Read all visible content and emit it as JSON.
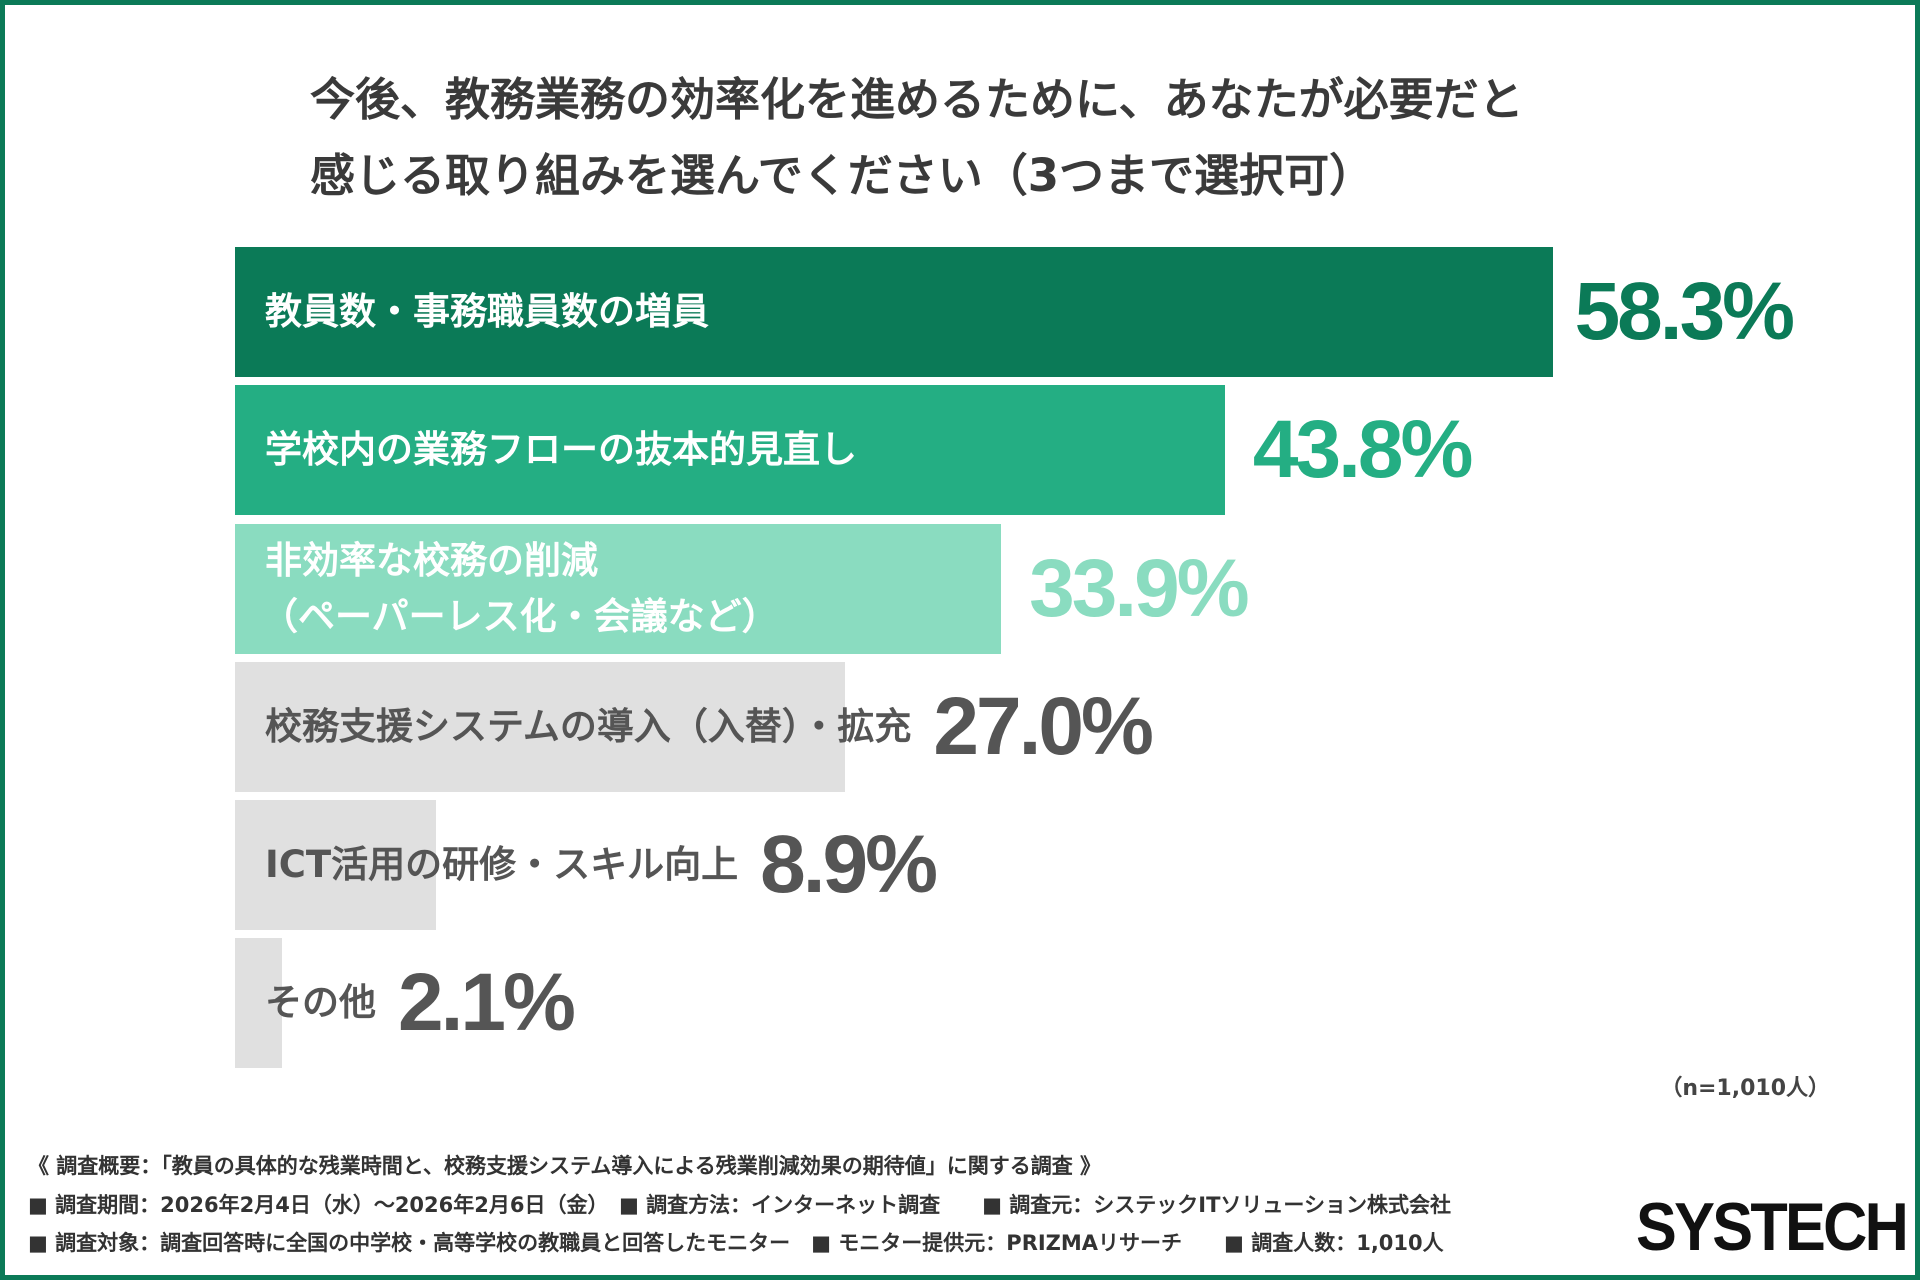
{
  "title": [
    "今後、教務業務の効率化を進めるために、あなたが必要だと",
    "感じる取り組みを選んでください（3つまで選択可）"
  ],
  "chart_data": {
    "type": "bar",
    "orientation": "horizontal",
    "title": "今後、教務業務の効率化を進めるために、あなたが必要だと感じる取り組みを選んでください（3つまで選択可）",
    "categories": [
      "教員数・事務職員数の増員",
      "学校内の業務フローの抜本的見直し",
      "非効率な校務の削減（ペーパーレス化・会議など）",
      "校務支援システムの導入（入替）・拡充",
      "ICT活用の研修・スキル向上",
      "その他"
    ],
    "category_lines": [
      [
        "教員数・事務職員数の増員"
      ],
      [
        "学校内の業務フローの抜本的見直し"
      ],
      [
        "非効率な校務の削減",
        "（ペーパーレス化・会議など）"
      ],
      [
        "校務支援システムの導入（入替）・拡充"
      ],
      [
        "ICT活用の研修・スキル向上"
      ],
      [
        "その他"
      ]
    ],
    "values": [
      58.3,
      43.8,
      33.9,
      27.0,
      8.9,
      2.1
    ],
    "value_labels": [
      "58.3%",
      "43.8%",
      "33.9%",
      "27.0%",
      "8.9%",
      "2.1%"
    ],
    "unit": "%",
    "bar_colors": [
      "#0b7a57",
      "#24ae83",
      "#8adcc0",
      "#e0e0e0",
      "#e0e0e0",
      "#e0e0e0"
    ],
    "value_colors": [
      "#0b7a57",
      "#24ae83",
      "#8adcc0",
      "#555555",
      "#555555",
      "#555555"
    ],
    "grid": false
  },
  "sample_note": "（n=1,010人）",
  "footer": [
    "《 調査概要：「教員の具体的な残業時間と、校務支援システム導入による残業削減効果の期待値」に関する調査 》",
    "■ 調査期間：2026年2月4日（水）～2026年2月6日（金）　■ 調査方法：インターネット調査　　■ 調査元：システックITソリューション株式会社",
    "■ 調査対象：調査回答時に全国の中学校・高等学校の教職員と回答したモニター　■ モニター提供元：PRIZMAリサーチ　　■ 調査人数：1,010人"
  ],
  "logo": "SYSTECH",
  "colors": {
    "border": "#0b7a57",
    "logo_accent": "#e01e1e"
  }
}
